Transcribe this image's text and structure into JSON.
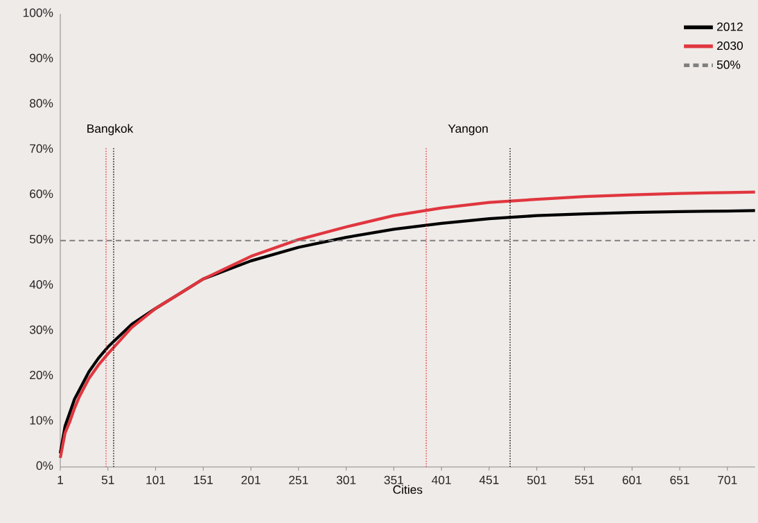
{
  "chart_data": {
    "type": "line",
    "xlabel": "Cities",
    "legend": "top right",
    "x": [
      1,
      6,
      11,
      16,
      21,
      31,
      41,
      51,
      76,
      101,
      151,
      201,
      251,
      301,
      351,
      401,
      451,
      501,
      551,
      601,
      651,
      701,
      730
    ],
    "series": [
      {
        "name": "2012",
        "color": "#000000",
        "values": [
          3,
          9,
          12,
          15,
          17,
          21,
          24,
          26.5,
          31.5,
          35,
          41.5,
          45.5,
          48.5,
          50.7,
          52.5,
          53.8,
          54.8,
          55.5,
          55.9,
          56.2,
          56.4,
          56.5,
          56.6
        ]
      },
      {
        "name": "2030",
        "color": "#e0363f",
        "values": [
          2,
          7.5,
          10,
          13,
          15.5,
          19.5,
          22.5,
          25,
          30.8,
          35,
          41.5,
          46.5,
          50.2,
          53,
          55.5,
          57.2,
          58.4,
          59.1,
          59.7,
          60.1,
          60.4,
          60.6,
          60.7
        ]
      }
    ],
    "xlim": [
      1,
      730
    ],
    "xticks": [
      1,
      51,
      101,
      151,
      201,
      251,
      301,
      351,
      401,
      451,
      501,
      551,
      601,
      651,
      701
    ],
    "ylim": [
      0,
      100
    ],
    "yticks": [
      {
        "value": 0,
        "label": "0%"
      },
      {
        "value": 10,
        "label": "10%"
      },
      {
        "value": 20,
        "label": "20%"
      },
      {
        "value": 30,
        "label": "30%"
      },
      {
        "value": 40,
        "label": "40%"
      },
      {
        "value": 50,
        "label": "50%"
      },
      {
        "value": 60,
        "label": "60%"
      },
      {
        "value": 70,
        "label": "70%"
      },
      {
        "value": 80,
        "label": "80%"
      },
      {
        "value": 90,
        "label": "90%"
      },
      {
        "value": 100,
        "label": "100%"
      }
    ],
    "ref_lines": [
      {
        "axis": "y",
        "value": 50,
        "label": "50%",
        "color": "#7f7f7f",
        "line_style": "dashed"
      },
      {
        "axis": "x",
        "value": 49,
        "label": "Bangkok",
        "color": "#e0363f",
        "line_style": "dotted"
      },
      {
        "axis": "x",
        "value": 57,
        "color": "#000000",
        "line_style": "dotted"
      },
      {
        "axis": "x",
        "value": 385,
        "label": "Yangon",
        "color": "#e0363f",
        "line_style": "dotted"
      },
      {
        "axis": "x",
        "value": 473,
        "color": "#000000",
        "line_style": "dotted"
      }
    ]
  }
}
